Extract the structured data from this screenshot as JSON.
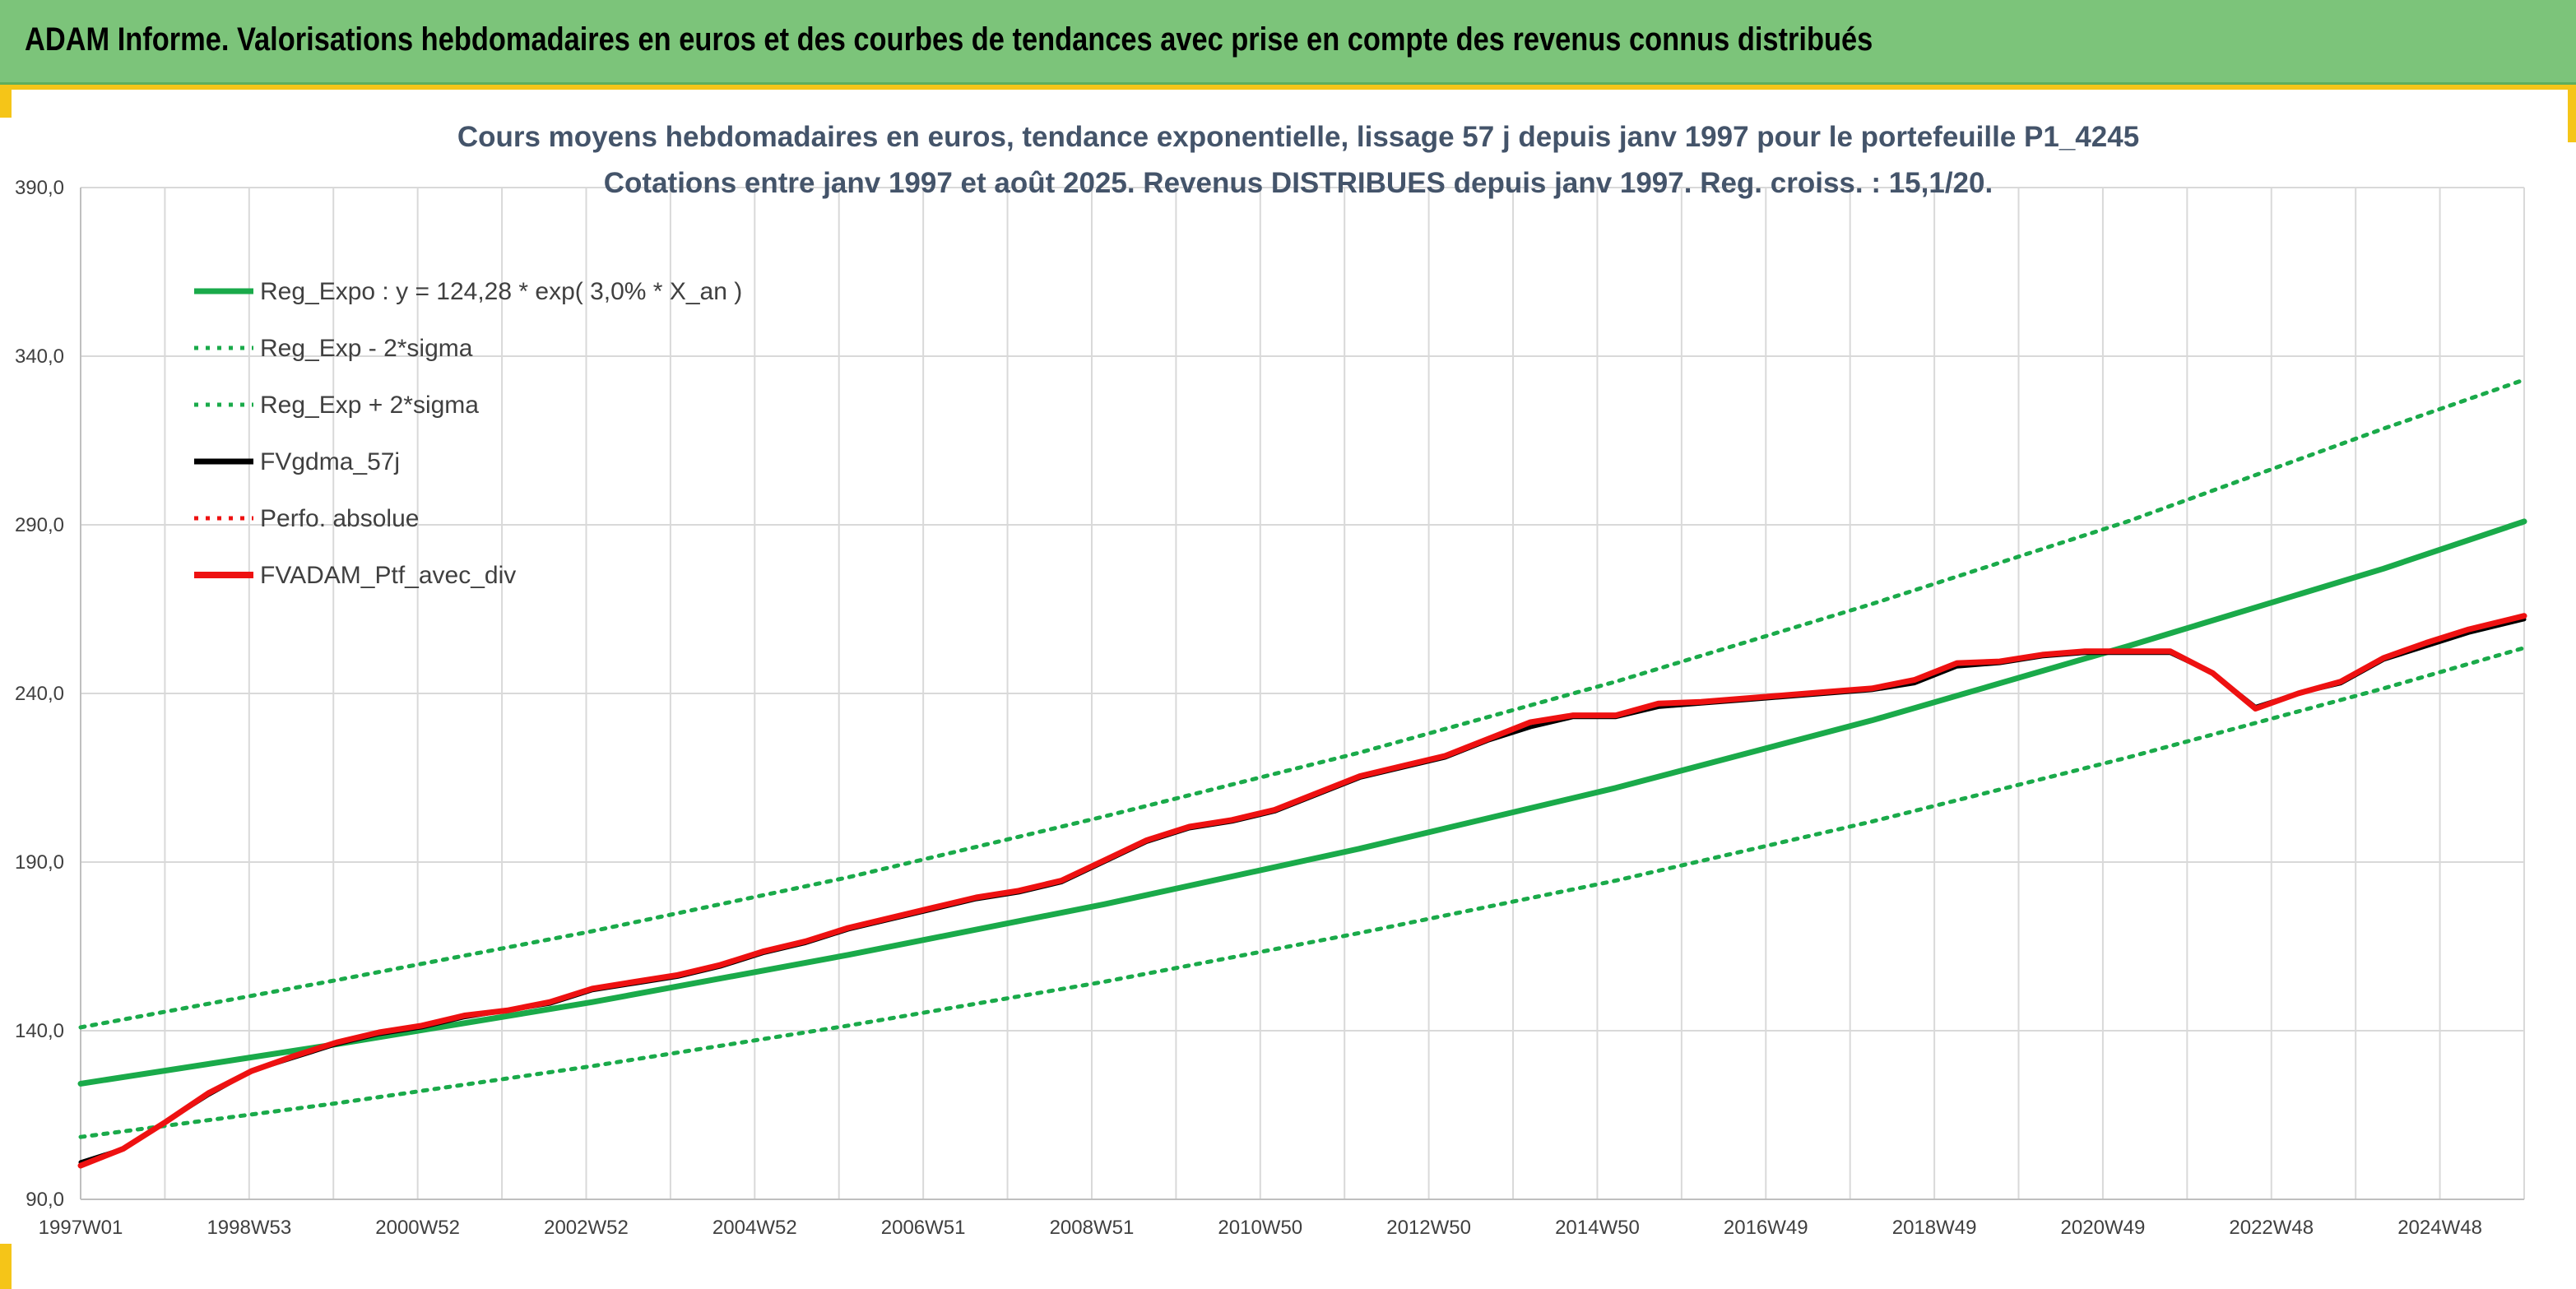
{
  "banner": {
    "title": "ADAM Informe. Valorisations hebdomadaires en euros et des courbes de tendances avec prise en compte des revenus connus distribués"
  },
  "colors": {
    "banner_bg": "#7cc47a",
    "accent_yellow": "#f5c518",
    "trend_green": "#1aaa4a",
    "portfolio_red": "#ee1111",
    "smoothing_black": "#000000",
    "grid": "#d9d9d9"
  },
  "chart_data": {
    "type": "line",
    "title": "Cours moyens hebdomadaires en euros, tendance exponentielle, lissage 57 j depuis janv 1997 pour le portefeuille P1_4245",
    "subtitle": "Cotations entre janv 1997 et août 2025. Revenus DISTRIBUES depuis janv 1997. Reg. croiss. : 15,1/20.",
    "x_tick_labels": [
      "1997W01",
      "1998W53",
      "2000W52",
      "2002W52",
      "2004W52",
      "2006W51",
      "2008W51",
      "2010W50",
      "2012W50",
      "2014W50",
      "2016W49",
      "2018W49",
      "2020W49",
      "2022W48",
      "2024W48"
    ],
    "y_tick_labels": [
      "90,0",
      "140,0",
      "190,0",
      "240,0",
      "290,0",
      "340,0",
      "390,0"
    ],
    "ylim": [
      90,
      390
    ],
    "xlim": [
      1997.0,
      2025.65
    ],
    "grid": true,
    "legend_position": "top-left",
    "legend": [
      {
        "label": "Reg_Expo : y = 124,28 * exp( 3,0% *  X_an )",
        "color": "#1aaa4a",
        "style": "solid"
      },
      {
        "label": "Reg_Exp - 2*sigma",
        "color": "#1aaa4a",
        "style": "dotted"
      },
      {
        "label": "Reg_Exp + 2*sigma",
        "color": "#1aaa4a",
        "style": "dotted"
      },
      {
        "label": "FVgdma_57j",
        "color": "#000000",
        "style": "solid"
      },
      {
        "label": "Perfo. absolue",
        "color": "#ee1111",
        "style": "dotted"
      },
      {
        "label": "FVADAM_Ptf_avec_div",
        "color": "#ee1111",
        "style": "solid"
      }
    ],
    "series": [
      {
        "name": "Reg_Expo : y = 124,28 * exp( 3,0% *  X_an )",
        "x": [
          1997.0,
          2000.0,
          2003.0,
          2006.0,
          2009.0,
          2012.0,
          2015.0,
          2018.0,
          2021.0,
          2024.0,
          2025.65
        ],
        "values": [
          124.3,
          136.0,
          148.5,
          162.5,
          177.5,
          194.0,
          212.0,
          232.0,
          254.0,
          277.0,
          291.0
        ]
      },
      {
        "name": "Reg_Exp - 2*sigma",
        "x": [
          1997.0,
          2000.0,
          2003.0,
          2006.0,
          2009.0,
          2012.0,
          2015.0,
          2018.0,
          2021.0,
          2024.0,
          2025.65
        ],
        "values": [
          108.5,
          118.5,
          129.5,
          141.5,
          154.5,
          169.0,
          184.5,
          202.0,
          221.0,
          241.5,
          253.5
        ]
      },
      {
        "name": "Reg_Exp + 2*sigma",
        "x": [
          1997.0,
          2000.0,
          2003.0,
          2006.0,
          2009.0,
          2012.0,
          2015.0,
          2018.0,
          2021.0,
          2024.0,
          2025.65
        ],
        "values": [
          141.0,
          155.0,
          169.5,
          185.5,
          203.5,
          222.5,
          243.5,
          266.5,
          291.0,
          318.5,
          333.0
        ]
      },
      {
        "name": "FVgdma_57j",
        "x": [
          1997.0,
          1997.5,
          1998.0,
          1998.5,
          1999.0,
          1999.5,
          2000.0,
          2000.5,
          2001.0,
          2001.5,
          2002.0,
          2002.5,
          2003.0,
          2003.5,
          2004.0,
          2004.5,
          2005.0,
          2005.5,
          2006.0,
          2006.5,
          2007.0,
          2007.5,
          2008.0,
          2008.5,
          2009.0,
          2009.5,
          2010.0,
          2010.5,
          2011.0,
          2011.5,
          2012.0,
          2012.5,
          2013.0,
          2013.5,
          2014.0,
          2014.5,
          2015.0,
          2015.5,
          2016.0,
          2016.5,
          2017.0,
          2017.5,
          2018.0,
          2018.5,
          2019.0,
          2019.5,
          2020.0,
          2020.5,
          2021.0,
          2021.5,
          2022.0,
          2022.5,
          2023.0,
          2023.5,
          2024.0,
          2024.5,
          2025.0,
          2025.65
        ],
        "values": [
          101.0,
          105.0,
          113.0,
          121.0,
          128.0,
          132.0,
          136.0,
          139.0,
          141.0,
          144.0,
          146.0,
          148.0,
          152.0,
          154.0,
          156.0,
          159.0,
          163.0,
          166.0,
          170.0,
          173.0,
          176.0,
          179.0,
          181.0,
          184.0,
          190.0,
          196.0,
          200.0,
          202.0,
          205.0,
          210.0,
          215.0,
          218.0,
          221.0,
          226.0,
          230.0,
          233.0,
          233.0,
          236.0,
          237.0,
          238.0,
          239.0,
          240.0,
          241.0,
          243.0,
          248.0,
          249.0,
          251.0,
          252.0,
          252.0,
          252.0,
          246.0,
          236.0,
          240.0,
          243.0,
          250.0,
          254.0,
          258.0,
          262.0
        ]
      },
      {
        "name": "FVADAM_Ptf_avec_div",
        "x": [
          1997.0,
          1997.5,
          1998.0,
          1998.5,
          1999.0,
          1999.5,
          2000.0,
          2000.5,
          2001.0,
          2001.5,
          2002.0,
          2002.5,
          2003.0,
          2003.5,
          2004.0,
          2004.5,
          2005.0,
          2005.5,
          2006.0,
          2006.5,
          2007.0,
          2007.5,
          2008.0,
          2008.5,
          2009.0,
          2009.5,
          2010.0,
          2010.5,
          2011.0,
          2011.5,
          2012.0,
          2012.5,
          2013.0,
          2013.5,
          2014.0,
          2014.5,
          2015.0,
          2015.5,
          2016.0,
          2016.5,
          2017.0,
          2017.5,
          2018.0,
          2018.5,
          2019.0,
          2019.5,
          2020.0,
          2020.5,
          2021.0,
          2021.5,
          2022.0,
          2022.5,
          2023.0,
          2023.5,
          2024.0,
          2024.5,
          2025.0,
          2025.65
        ],
        "values": [
          100.0,
          105.0,
          113.0,
          121.5,
          128.0,
          132.5,
          136.5,
          139.5,
          141.5,
          144.5,
          146.0,
          148.5,
          152.5,
          154.5,
          156.5,
          159.5,
          163.5,
          166.5,
          170.5,
          173.5,
          176.5,
          179.5,
          181.5,
          184.5,
          190.5,
          196.5,
          200.5,
          202.5,
          205.5,
          210.5,
          215.5,
          218.5,
          221.5,
          226.5,
          231.5,
          233.5,
          233.5,
          237.0,
          237.5,
          238.5,
          239.5,
          240.5,
          241.5,
          244.0,
          249.0,
          249.5,
          251.5,
          252.5,
          252.5,
          252.5,
          246.0,
          235.5,
          240.0,
          243.5,
          250.5,
          255.0,
          259.0,
          263.0
        ]
      }
    ]
  }
}
